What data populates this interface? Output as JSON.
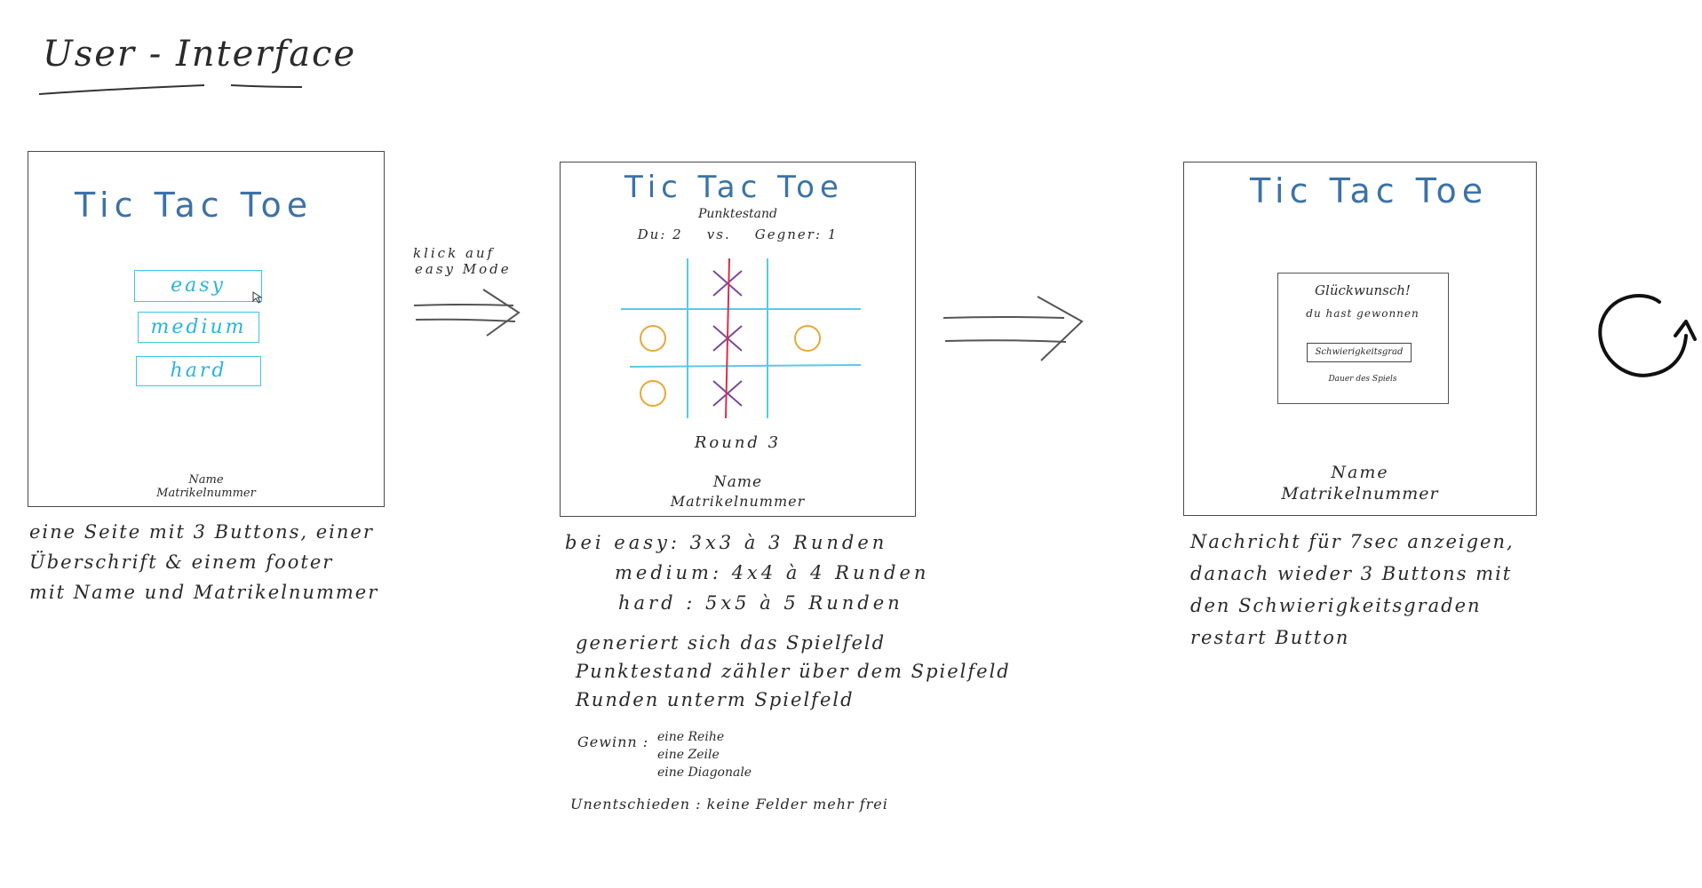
{
  "heading": "User - Interface",
  "screens": {
    "start": {
      "title": "Tic Tac Toe",
      "buttons": [
        "easy",
        "medium",
        "hard"
      ],
      "footer_name": "Name",
      "footer_id": "Matrikelnummer"
    },
    "game": {
      "title": "Tic Tac Toe",
      "score_label": "Punktestand",
      "score_line": "Du: 2    vs.    Gegner: 1",
      "round_label": "Round 3",
      "board": [
        [
          "",
          "X",
          ""
        ],
        [
          "O",
          "X",
          "O"
        ],
        [
          "O",
          "X",
          ""
        ]
      ],
      "footer_name": "Name",
      "footer_id": "Matrikelnummer"
    },
    "end": {
      "title": "Tic Tac Toe",
      "message_title": "Glückwunsch!",
      "message_text": "du hast gewonnen",
      "difficulty_box": "Schwierigkeitsgrad",
      "duration": "Dauer des Spiels",
      "footer_name": "Name",
      "footer_id": "Matrikelnummer"
    }
  },
  "arrows": {
    "first_label_1": "klick auf",
    "first_label_2": "easy Mode"
  },
  "notes": {
    "start": [
      "eine Seite mit 3 Buttons, einer",
      "Überschrift & einem footer",
      "mit Name und Matrikelnummer"
    ],
    "game_modes": [
      "bei easy: 3x3  à 3 Runden",
      "medium: 4x4  à 4 Runden",
      "hard : 5x5  à 5 Runden"
    ],
    "game_desc": [
      "generiert sich das Spielfeld",
      "Punktestand zähler über dem Spielfeld",
      "Runden unterm Spielfeld"
    ],
    "win_label": "Gewinn :",
    "win_items": [
      "eine Reihe",
      "eine Zeile",
      "eine Diagonale"
    ],
    "draw": "Unentschieden : keine Felder mehr frei",
    "end": [
      "Nachricht für 7sec anzeigen,",
      "danach wieder 3 Buttons mit",
      "den Schwierigkeitsgraden",
      "restart Button"
    ]
  },
  "colors": {
    "accent_blue": "#3c72a8",
    "button_cyan": "#3ec5e8",
    "grid_cyan": "#5bc8e8",
    "x_purple": "#7a4a9a",
    "o_orange": "#e8a838",
    "win_red": "#d8304a"
  },
  "icons": {
    "restart": "restart-arrow-icon"
  }
}
